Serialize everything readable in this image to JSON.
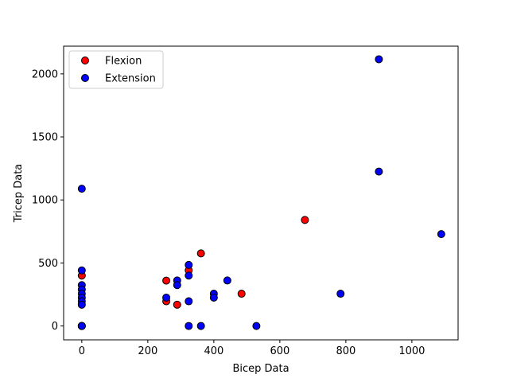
{
  "chart_data": {
    "type": "scatter",
    "title": "",
    "xlabel": "Bicep Data",
    "ylabel": "Tricep Data",
    "xlim": [
      -55,
      1140
    ],
    "ylim": [
      -110,
      2220
    ],
    "xticks": [
      0,
      200,
      400,
      600,
      800,
      1000
    ],
    "yticks": [
      0,
      500,
      1000,
      1500,
      2000
    ],
    "grid": false,
    "legend_position": "top-left",
    "series": [
      {
        "name": "Flexion",
        "color": "#ff0000",
        "points": [
          [
            0,
            400
          ],
          [
            0,
            0
          ],
          [
            256,
            360
          ],
          [
            256,
            196
          ],
          [
            289,
            169
          ],
          [
            324,
            441
          ],
          [
            361,
            576
          ],
          [
            484,
            256
          ],
          [
            676,
            841
          ],
          [
            0,
            0
          ]
        ]
      },
      {
        "name": "Extension",
        "color": "#0000ff",
        "points": [
          [
            0,
            1089
          ],
          [
            0,
            441
          ],
          [
            0,
            324
          ],
          [
            0,
            289
          ],
          [
            0,
            256
          ],
          [
            0,
            225
          ],
          [
            0,
            196
          ],
          [
            0,
            169
          ],
          [
            0,
            0
          ],
          [
            0,
            0
          ],
          [
            256,
            225
          ],
          [
            289,
            361
          ],
          [
            289,
            324
          ],
          [
            324,
            484
          ],
          [
            324,
            400
          ],
          [
            324,
            196
          ],
          [
            324,
            0
          ],
          [
            361,
            0
          ],
          [
            400,
            256
          ],
          [
            400,
            225
          ],
          [
            441,
            361
          ],
          [
            529,
            0
          ],
          [
            784,
            256
          ],
          [
            900,
            2116
          ],
          [
            900,
            1225
          ],
          [
            1089,
            729
          ]
        ]
      }
    ]
  }
}
